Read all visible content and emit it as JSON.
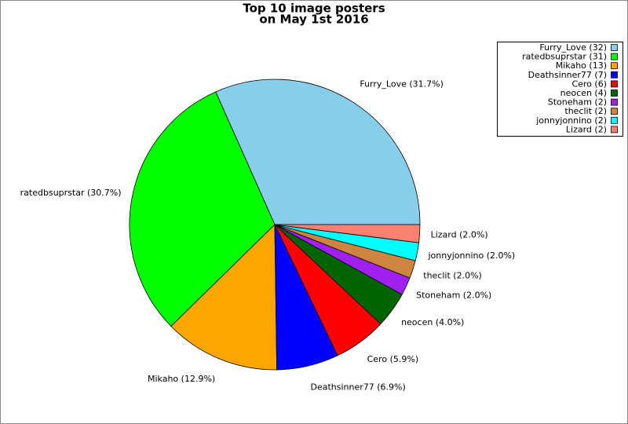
{
  "chart_data": {
    "type": "pie",
    "title": "Top 10 image posters",
    "subtitle": "on May 1st 2016",
    "categories": [
      "Furry_Love (32)",
      "ratedbsuprstar (31)",
      "Mikaho (13)",
      "Deathsinner77 (7)",
      "Cero (6)",
      "neocen (4)",
      "Stoneham (2)",
      "theclit (2)",
      "jonnyjonnino (2)",
      "Lizard (2)"
    ],
    "values": [
      31.7,
      30.7,
      12.9,
      6.9,
      5.9,
      4.0,
      2.0,
      2.0,
      2.0,
      2.0
    ],
    "value_labels": [
      "Furry_Love (31.7%)",
      "ratedbsuprstar (30.7%)",
      "Mikaho (12.9%)",
      "Deathsinner77 (6.9%)",
      "Cero (5.9%)",
      "neocen (4.0%)",
      "Stoneham (2.0%)",
      "theclit (2.0%)",
      "jonnyjonnino (2.0%)",
      "Lizard (2.0%)"
    ],
    "colors": [
      "#87ceeb",
      "#00ff00",
      "#ffa500",
      "#0000ff",
      "#ff0000",
      "#006400",
      "#a020f0",
      "#cd853f",
      "#00ffff",
      "#fa8072"
    ],
    "legend": "top-right"
  }
}
